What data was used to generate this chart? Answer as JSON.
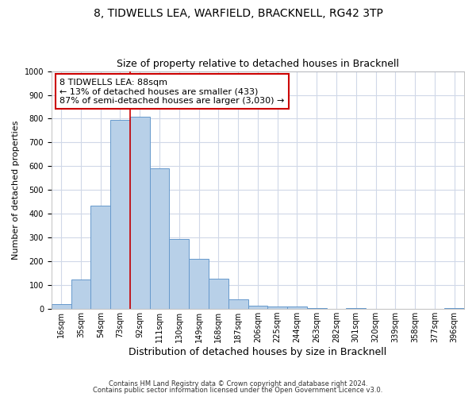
{
  "title": "8, TIDWELLS LEA, WARFIELD, BRACKNELL, RG42 3TP",
  "subtitle": "Size of property relative to detached houses in Bracknell",
  "xlabel": "Distribution of detached houses by size in Bracknell",
  "ylabel": "Number of detached properties",
  "bar_heights": [
    20,
    125,
    435,
    795,
    808,
    590,
    293,
    212,
    127,
    42,
    15,
    10,
    10,
    5,
    0,
    5,
    0,
    0,
    0,
    0,
    5
  ],
  "categories": [
    "16sqm",
    "35sqm",
    "54sqm",
    "73sqm",
    "92sqm",
    "111sqm",
    "130sqm",
    "149sqm",
    "168sqm",
    "187sqm",
    "206sqm",
    "225sqm",
    "244sqm",
    "263sqm",
    "282sqm",
    "301sqm",
    "320sqm",
    "339sqm",
    "358sqm",
    "377sqm",
    "396sqm"
  ],
  "bar_color": "#b8d0e8",
  "bar_edge_color": "#6699cc",
  "vline_color": "#cc0000",
  "vline_x_index": 4,
  "annotation_text": "8 TIDWELLS LEA: 88sqm\n← 13% of detached houses are smaller (433)\n87% of semi-detached houses are larger (3,030) →",
  "annotation_box_facecolor": "#ffffff",
  "annotation_box_edgecolor": "#cc0000",
  "ylim": [
    0,
    1000
  ],
  "yticks": [
    0,
    100,
    200,
    300,
    400,
    500,
    600,
    700,
    800,
    900,
    1000
  ],
  "background_color": "#ffffff",
  "grid_color": "#d0d8e8",
  "footer1": "Contains HM Land Registry data © Crown copyright and database right 2024.",
  "footer2": "Contains public sector information licensed under the Open Government Licence v3.0.",
  "title_fontsize": 10,
  "subtitle_fontsize": 9,
  "ylabel_fontsize": 8,
  "xlabel_fontsize": 9,
  "tick_fontsize": 7,
  "annot_fontsize": 8
}
